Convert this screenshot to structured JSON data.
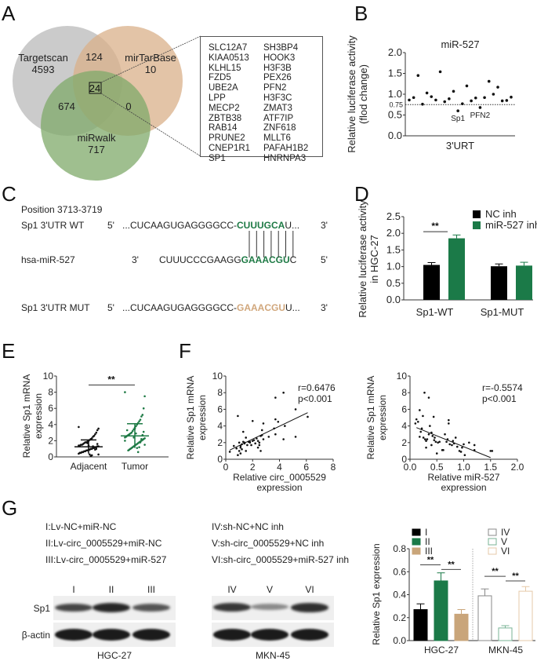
{
  "panels": {
    "A": {
      "letter": "A",
      "venn": {
        "sets": [
          {
            "name": "Targetscan",
            "only": "4593",
            "color": "#c2c2c2"
          },
          {
            "name": "mirTarBase",
            "only": "10",
            "color": "#deba96"
          },
          {
            "name": "miRwalk",
            "only": "717",
            "color": "#8fb57a"
          }
        ],
        "intersections": {
          "targetscan_mirtarbase": "124",
          "targetscan_mirwalk": "674",
          "mirtarbase_mirwalk": "0",
          "all_three": "24"
        }
      },
      "gene_list_col1": [
        "SLC12A7",
        "KIAA0513",
        "KLHL15",
        "FZD5",
        "UBE2A",
        "LPP",
        "MECP2",
        "ZBTB38",
        "RAB14",
        "PRUNE2",
        "CNEP1R1",
        "SP1"
      ],
      "gene_list_col2": [
        "SH3BP4",
        "HOOK3",
        "H3F3B",
        "PEX26",
        "PFN2",
        "H3F3C",
        "ZMAT3",
        "ATF7IP",
        "ZNF618",
        "MLLT6",
        "PAFAH1B2",
        "HNRNPA3"
      ]
    },
    "B": {
      "letter": "B"
    },
    "C": {
      "letter": "C",
      "position": "Position 3713-3719",
      "rows": [
        {
          "label": "Sp1 3'UTR WT",
          "left_end": "5'",
          "prefix": "...CUCAAGUGAGGGGCC-",
          "highlight": "CUUUGCA",
          "suffix": "U...",
          "right_end": "3'"
        },
        {
          "label": "hsa-miR-527",
          "left_end": "3'",
          "prefix": "CUUUCCCGAAGG",
          "highlight": "GAAACGU",
          "suffix": "C",
          "right_end": "5'"
        },
        {
          "label": "Sp1 3'UTR MUT",
          "left_end": "5'",
          "prefix": "...CUCAAGUGAGGGGCC-",
          "highlight": "GAAACGU",
          "suffix": "U...",
          "right_end": "3'"
        }
      ],
      "colors": {
        "seed": "#1e7a45",
        "mutant": "#d1a77c"
      }
    },
    "D": {
      "letter": "D"
    },
    "E": {
      "letter": "E"
    },
    "F": {
      "letter": "F"
    },
    "G": {
      "letter": "G",
      "legend_left": [
        "I:Lv-NC+miR-NC",
        "II:Lv-circ_0005529+miR-NC",
        "III:Lv-circ_0005529+miR-527"
      ],
      "legend_right": [
        "IV:sh-NC+NC inh",
        "V:sh-circ_0005529+NC inh",
        "VI:sh-circ_0005529+miR-527 inh"
      ],
      "blot_left": {
        "lanes": [
          "I",
          "II",
          "III"
        ],
        "cell_line": "HGC-27",
        "sp1_intensity": [
          0.75,
          0.95,
          0.65
        ],
        "actin_intensity": [
          1,
          1,
          1
        ]
      },
      "blot_right": {
        "lanes": [
          "IV",
          "V",
          "VI"
        ],
        "cell_line": "MKN-45",
        "sp1_intensity": [
          0.85,
          0.3,
          0.9
        ],
        "actin_intensity": [
          1,
          1,
          1
        ]
      },
      "row_labels": [
        "Sp1",
        "β-actin"
      ]
    }
  },
  "chart_data": [
    {
      "id": "B",
      "type": "scatter",
      "title": "miR-527",
      "xlabel": "3'URT",
      "ylabel": "Relative luciferase activity\n(flod change)",
      "ylim": [
        0,
        2.0
      ],
      "yticks": [
        "0.0",
        "0.5",
        "1.0",
        "1.5",
        "2.0"
      ],
      "threshold": {
        "value": 0.75,
        "label": "0.75"
      },
      "values": [
        0.86,
        0.92,
        1.45,
        0.76,
        1.03,
        0.94,
        0.86,
        1.54,
        0.82,
        0.89,
        1.07,
        0.6,
        0.77,
        1.2,
        0.84,
        0.91,
        0.68,
        0.92,
        1.31,
        1.0,
        1.17,
        0.84,
        0.85,
        0.93
      ],
      "annotations": [
        {
          "index": 11,
          "text": "Sp1"
        },
        {
          "index": 16,
          "text": "PFN2"
        }
      ]
    },
    {
      "id": "D",
      "type": "bar",
      "ylabel": "Relative luciferase activity\nin HGC-27",
      "ylim": [
        0,
        2.5
      ],
      "yticks": [
        "0.0",
        "0.5",
        "1.0",
        "1.5",
        "2.0",
        "2.5"
      ],
      "categories": [
        "Sp1-WT",
        "Sp1-MUT"
      ],
      "series": [
        {
          "name": "NC inh",
          "color": "#000000",
          "values": [
            1.05,
            1.01
          ],
          "errors": [
            0.07,
            0.07
          ]
        },
        {
          "name": "miR-527 inh",
          "color": "#1b7a48",
          "values": [
            1.85,
            1.03
          ],
          "errors": [
            0.1,
            0.1
          ]
        }
      ],
      "significance": [
        {
          "category": "Sp1-WT",
          "label": "**"
        }
      ],
      "legend": "top-right"
    },
    {
      "id": "E",
      "type": "scatter",
      "ylabel": "Relative Sp1 mRNA\nexpression",
      "ylim": [
        0,
        10
      ],
      "yticks": [
        "0",
        "2",
        "4",
        "6",
        "8",
        "10"
      ],
      "categories": [
        "Adjacent",
        "Tumor"
      ],
      "series": [
        {
          "name": "Adjacent",
          "color": "#111111",
          "mean": 1.25,
          "sd_upper": 2.1,
          "sd_lower": 0.4,
          "values": [
            3.7,
            3.5,
            3.3,
            3.0,
            2.8,
            2.6,
            2.5,
            2.3,
            2.2,
            2.1,
            2.0,
            1.9,
            1.8,
            1.8,
            1.7,
            1.6,
            1.5,
            1.5,
            1.4,
            1.4,
            1.3,
            1.3,
            1.2,
            1.2,
            1.1,
            1.1,
            1.0,
            1.0,
            0.9,
            0.9,
            0.8,
            0.8,
            0.7,
            0.7,
            0.6,
            0.6,
            0.5,
            0.5,
            0.4,
            0.3,
            1.6,
            1.0,
            0.9,
            1.2,
            1.3,
            0.2,
            0.1,
            0.3,
            1.4,
            1.7
          ]
        },
        {
          "name": "Tumor",
          "color": "#1e7a45",
          "mean": 2.6,
          "sd_upper": 4.1,
          "sd_lower": 1.1,
          "values": [
            8.0,
            7.5,
            6.0,
            5.2,
            5.0,
            4.6,
            4.4,
            4.2,
            4.0,
            3.8,
            3.6,
            3.4,
            3.2,
            3.0,
            2.9,
            2.8,
            2.7,
            2.6,
            2.5,
            2.4,
            2.3,
            2.2,
            2.1,
            2.0,
            1.9,
            1.8,
            1.7,
            1.6,
            1.5,
            1.4,
            1.3,
            1.2,
            1.1,
            1.0,
            0.9,
            0.8,
            3.3,
            2.5,
            2.0,
            1.5,
            3.1,
            2.7,
            2.2,
            1.8,
            1.2,
            0.6,
            1.1,
            2.9,
            3.5,
            2.4
          ]
        }
      ],
      "significance": [
        {
          "label": "**"
        }
      ]
    },
    {
      "id": "F1",
      "type": "scatter",
      "xlabel": "Relative circ_0005529\nexpression",
      "ylabel": "Relative Sp1 mRNA\nexpression",
      "xlim": [
        0,
        8
      ],
      "ylim": [
        0,
        10
      ],
      "xticks": [
        "0",
        "2",
        "4",
        "6",
        "8"
      ],
      "yticks": [
        "0",
        "2",
        "4",
        "6",
        "8",
        "10"
      ],
      "annotation": [
        "r=0.6476",
        "p<0.001"
      ],
      "fit": {
        "x": [
          0.3,
          6.1
        ],
        "y": [
          1.1,
          5.6
        ]
      },
      "points": [
        [
          0.3,
          0.9
        ],
        [
          0.6,
          1.6
        ],
        [
          0.9,
          5.2
        ],
        [
          0.9,
          0.5
        ],
        [
          1.0,
          2.0
        ],
        [
          1.0,
          1.0
        ],
        [
          1.1,
          0.7
        ],
        [
          1.1,
          1.4
        ],
        [
          1.2,
          1.8
        ],
        [
          1.2,
          1.2
        ],
        [
          1.3,
          2.1
        ],
        [
          1.3,
          3.3
        ],
        [
          1.4,
          1.9
        ],
        [
          1.5,
          2.6
        ],
        [
          1.5,
          1.0
        ],
        [
          1.6,
          1.7
        ],
        [
          1.7,
          2.1
        ],
        [
          1.8,
          2.0
        ],
        [
          1.9,
          1.7
        ],
        [
          2.0,
          4.6
        ],
        [
          2.0,
          2.2
        ],
        [
          2.2,
          1.9
        ],
        [
          2.3,
          2.5
        ],
        [
          2.4,
          1.4
        ],
        [
          2.4,
          2.2
        ],
        [
          2.5,
          1.7
        ],
        [
          2.6,
          2.8
        ],
        [
          2.6,
          1.0
        ],
        [
          2.7,
          3.5
        ],
        [
          2.7,
          2.9
        ],
        [
          2.8,
          4.3
        ],
        [
          2.8,
          2.4
        ],
        [
          3.2,
          2.7
        ],
        [
          3.6,
          3.7
        ],
        [
          3.7,
          7.4
        ],
        [
          3.7,
          4.8
        ],
        [
          3.7,
          3.0
        ],
        [
          3.9,
          4.5
        ],
        [
          4.3,
          8.0
        ],
        [
          4.3,
          2.4
        ],
        [
          4.4,
          4.0
        ],
        [
          5.2,
          6.0
        ],
        [
          5.2,
          2.7
        ],
        [
          6.1,
          5.1
        ],
        [
          1.4,
          2.0
        ],
        [
          1.8,
          2.1
        ],
        [
          2.1,
          2.3
        ],
        [
          2.5,
          2.0
        ],
        [
          1.1,
          1.6
        ],
        [
          0.8,
          1.3
        ]
      ]
    },
    {
      "id": "F2",
      "type": "scatter",
      "xlabel": "Relative miR-527\nexpression",
      "ylabel": "Relative Sp1 mRNA\nexpression",
      "xlim": [
        0,
        2.0
      ],
      "ylim": [
        0,
        10
      ],
      "xticks": [
        "0.0",
        "0.5",
        "1.0",
        "1.5",
        "2.0"
      ],
      "yticks": [
        "0",
        "2",
        "4",
        "6",
        "8",
        "10"
      ],
      "annotation": [
        "r=-0.5574",
        "p<0.001"
      ],
      "fit": {
        "x": [
          0.12,
          1.5
        ],
        "y": [
          3.8,
          0.2
        ]
      },
      "points": [
        [
          0.1,
          4.3
        ],
        [
          0.12,
          4.8
        ],
        [
          0.15,
          4.5
        ],
        [
          0.18,
          5.9
        ],
        [
          0.18,
          2.7
        ],
        [
          0.2,
          3.3
        ],
        [
          0.22,
          3.7
        ],
        [
          0.24,
          5.2
        ],
        [
          0.25,
          2.6
        ],
        [
          0.27,
          8.0
        ],
        [
          0.28,
          2.4
        ],
        [
          0.3,
          1.4
        ],
        [
          0.3,
          2.2
        ],
        [
          0.32,
          2.4
        ],
        [
          0.35,
          7.4
        ],
        [
          0.35,
          3.0
        ],
        [
          0.37,
          4.0
        ],
        [
          0.4,
          1.7
        ],
        [
          0.4,
          3.2
        ],
        [
          0.42,
          2.8
        ],
        [
          0.44,
          5.1
        ],
        [
          0.45,
          2.3
        ],
        [
          0.46,
          2.6
        ],
        [
          0.48,
          2.1
        ],
        [
          0.5,
          0.7
        ],
        [
          0.52,
          2.0
        ],
        [
          0.55,
          2.1
        ],
        [
          0.6,
          1.1
        ],
        [
          0.62,
          1.1
        ],
        [
          0.65,
          3.0
        ],
        [
          0.68,
          2.1
        ],
        [
          0.7,
          2.4
        ],
        [
          0.72,
          4.7
        ],
        [
          0.72,
          4.3
        ],
        [
          0.74,
          1.8
        ],
        [
          0.78,
          1.7
        ],
        [
          0.8,
          2.2
        ],
        [
          0.82,
          1.9
        ],
        [
          0.85,
          2.6
        ],
        [
          0.88,
          1.5
        ],
        [
          0.92,
          1.0
        ],
        [
          0.95,
          0.9
        ],
        [
          0.97,
          1.4
        ],
        [
          1.0,
          1.8
        ],
        [
          1.02,
          0.5
        ],
        [
          1.1,
          2.0
        ],
        [
          1.2,
          1.7
        ],
        [
          1.2,
          1.1
        ],
        [
          1.5,
          1.0
        ],
        [
          1.53,
          1.0
        ]
      ]
    },
    {
      "id": "G",
      "type": "bar",
      "ylabel": "Relative Sp1 expression",
      "ylim": [
        0,
        0.8
      ],
      "yticks": [
        "0.0",
        "0.2",
        "0.4",
        "0.6",
        "0.8"
      ],
      "categories": [
        "HGC-27",
        "MKN-45"
      ],
      "series": [
        {
          "name": "I",
          "group": "HGC-27",
          "color": "#000000",
          "filled": true,
          "value": 0.27,
          "error": 0.05
        },
        {
          "name": "II",
          "group": "HGC-27",
          "color": "#1b7a48",
          "filled": true,
          "value": 0.52,
          "error": 0.07
        },
        {
          "name": "III",
          "group": "HGC-27",
          "color": "#c9a57a",
          "filled": true,
          "value": 0.23,
          "error": 0.04
        },
        {
          "name": "IV",
          "group": "MKN-45",
          "color": "#888888",
          "filled": false,
          "value": 0.39,
          "error": 0.06
        },
        {
          "name": "V",
          "group": "MKN-45",
          "color": "#79b396",
          "filled": false,
          "value": 0.11,
          "error": 0.02
        },
        {
          "name": "VI",
          "group": "MKN-45",
          "color": "#e6c9a8",
          "filled": false,
          "value": 0.43,
          "error": 0.04
        }
      ],
      "significance": [
        {
          "pair": [
            "I",
            "II"
          ],
          "label": "**"
        },
        {
          "pair": [
            "II",
            "III"
          ],
          "label": "**"
        },
        {
          "pair": [
            "IV",
            "V"
          ],
          "label": "**"
        },
        {
          "pair": [
            "V",
            "VI"
          ],
          "label": "**"
        }
      ],
      "legend": "top"
    }
  ]
}
